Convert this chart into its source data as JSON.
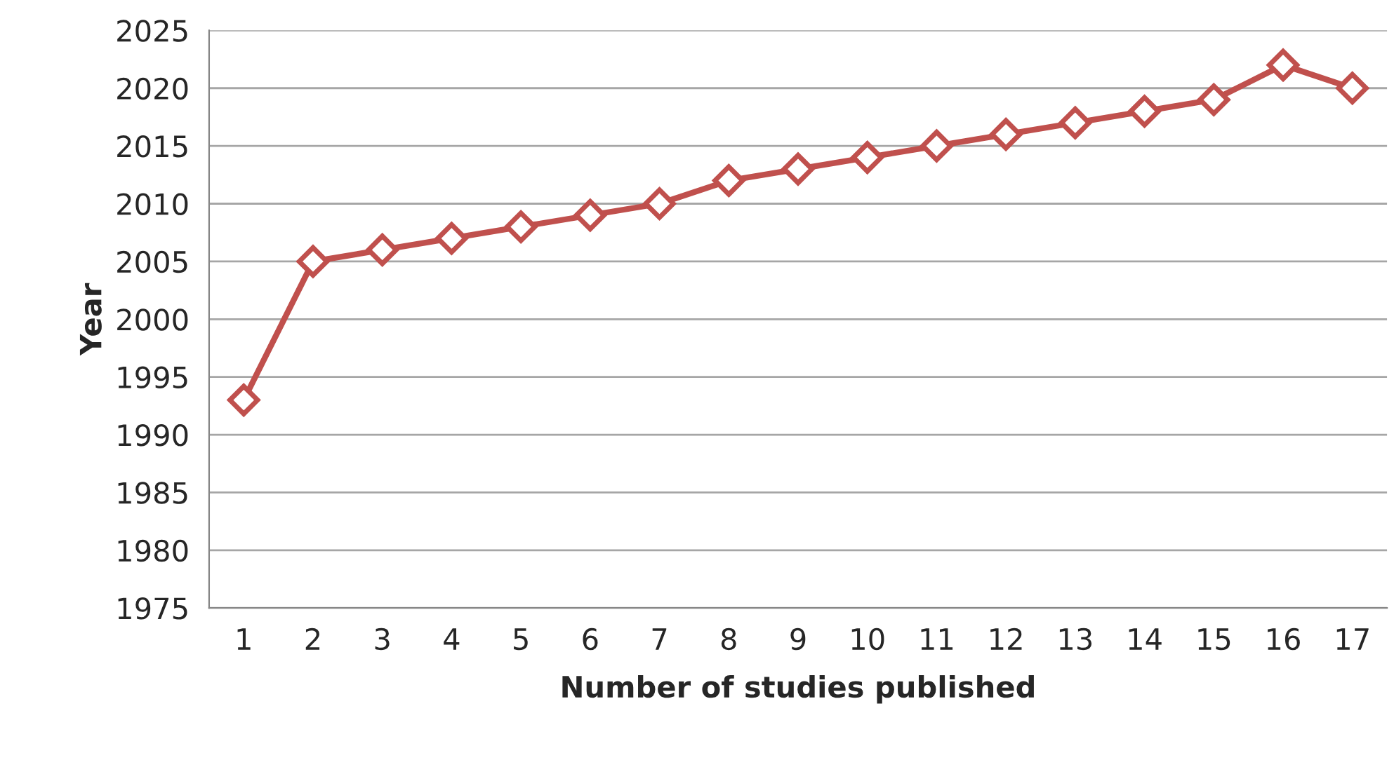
{
  "chart_data": {
    "type": "line",
    "xlabel": "Number of studies published",
    "ylabel": "Year",
    "categories": [
      "1",
      "2",
      "3",
      "4",
      "5",
      "6",
      "7",
      "8",
      "9",
      "10",
      "11",
      "12",
      "13",
      "14",
      "15",
      "16",
      "17"
    ],
    "series": [
      {
        "color": "#c0504d",
        "values": [
          1993,
          2005,
          2006,
          2007,
          2008,
          2009,
          2010,
          2012,
          2013,
          2014,
          2015,
          2016,
          2017,
          2018,
          2019,
          2022,
          2020
        ]
      }
    ],
    "ylim": [
      1975,
      2025
    ],
    "yticks": [
      1975,
      1980,
      1985,
      1990,
      1995,
      2000,
      2005,
      2010,
      2015,
      2020,
      2025
    ],
    "grid": "y",
    "marker": "diamond",
    "line_style": "solid"
  }
}
